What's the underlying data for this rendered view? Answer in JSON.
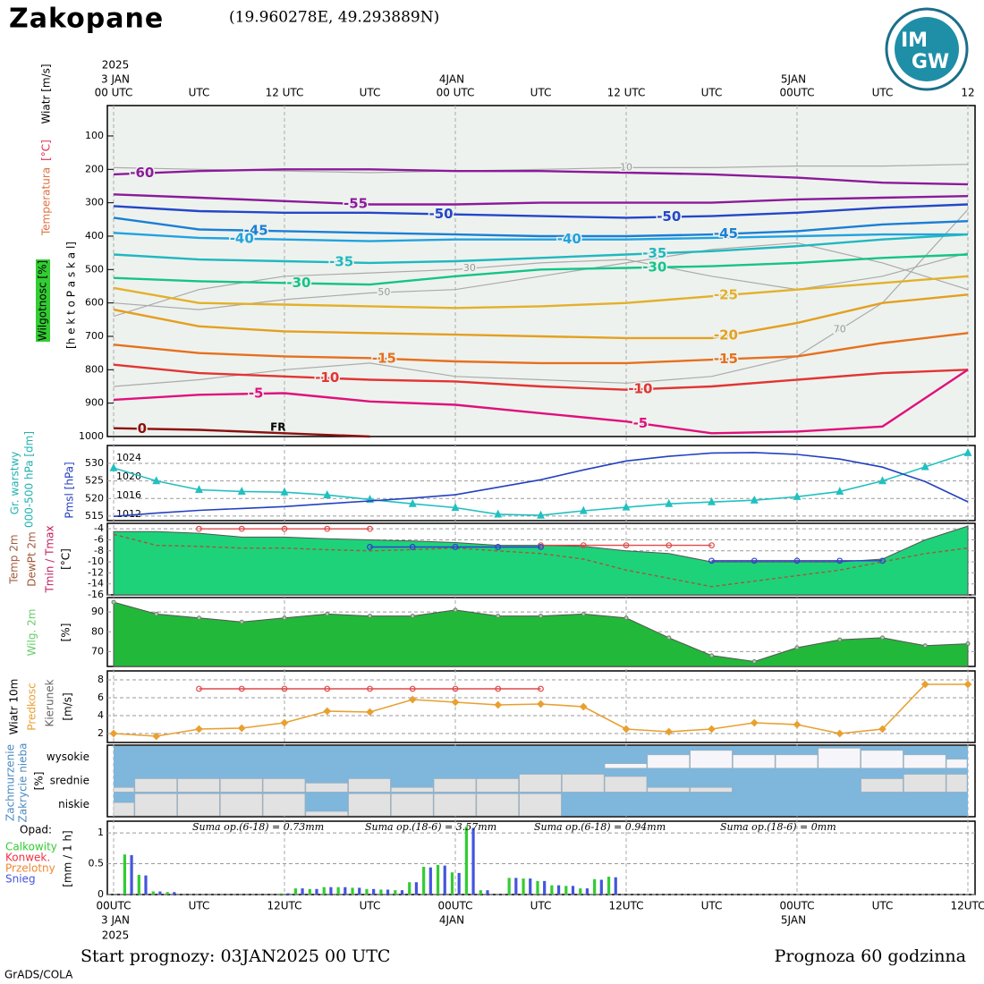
{
  "header": {
    "title": "Zakopane",
    "coords": "(19.960278E, 49.293889N)",
    "logo": {
      "top": "IM",
      "bottom": "GW"
    }
  },
  "time_axis": {
    "xlim": [
      0,
      60
    ],
    "top_ticks": [
      {
        "value": 0,
        "label": "00 UTC"
      },
      {
        "value": 6,
        "label": "UTC"
      },
      {
        "value": 12,
        "label": "12 UTC"
      },
      {
        "value": 18,
        "label": "UTC"
      },
      {
        "value": 24,
        "label": "00 UTC"
      },
      {
        "value": 30,
        "label": "UTC"
      },
      {
        "value": 36,
        "label": "12 UTC"
      },
      {
        "value": 42,
        "label": "UTC"
      },
      {
        "value": 48,
        "label": "00UTC"
      },
      {
        "value": 54,
        "label": "UTC"
      },
      {
        "value": 60,
        "label": "12"
      }
    ],
    "top_dates": [
      {
        "value": 0,
        "label": "2025"
      },
      {
        "value": 0,
        "label": "3 JAN"
      },
      {
        "value": 24,
        "label": "4JAN"
      },
      {
        "value": 48,
        "label": "5JAN"
      }
    ],
    "bottom_ticks": [
      {
        "value": 0,
        "label": "00UTC"
      },
      {
        "value": 6,
        "label": "UTC"
      },
      {
        "value": 12,
        "label": "12UTC"
      },
      {
        "value": 18,
        "label": "UTC"
      },
      {
        "value": 24,
        "label": "00UTC"
      },
      {
        "value": 30,
        "label": "UTC"
      },
      {
        "value": 36,
        "label": "12UTC"
      },
      {
        "value": 42,
        "label": "UTC"
      },
      {
        "value": 48,
        "label": "00UTC"
      },
      {
        "value": 54,
        "label": "UTC"
      },
      {
        "value": 60,
        "label": "12UTC"
      }
    ],
    "bottom_dates": [
      {
        "value": 0,
        "label": "3 JAN"
      },
      {
        "value": 0,
        "label": "2025"
      },
      {
        "value": 24,
        "label": "4JAN"
      },
      {
        "value": 48,
        "label": "5JAN"
      }
    ]
  },
  "chart_data": [
    {
      "type": "contour",
      "axis_labels": [
        "Wiatr [m/s]",
        "[°C]",
        "Temperatura",
        "Wilgotnosc [%]",
        "[h e k t o P a s k a l]"
      ],
      "ylim": [
        1000,
        9
      ],
      "yticks": [
        100,
        200,
        300,
        400,
        500,
        600,
        700,
        800,
        900,
        1000
      ],
      "x": [
        0,
        6,
        12,
        18,
        24,
        30,
        36,
        42,
        48,
        54,
        60
      ],
      "series": [
        {
          "name": "-60",
          "color": "#8b1a9b",
          "values": [
            215,
            205,
            200,
            200,
            205,
            205,
            210,
            215,
            225,
            240,
            245
          ]
        },
        {
          "name": "-55",
          "color": "#8b1a9b",
          "values": [
            275,
            285,
            295,
            305,
            305,
            300,
            300,
            300,
            290,
            285,
            280
          ]
        },
        {
          "name": "-50",
          "color": "#2446c8",
          "values": [
            310,
            325,
            330,
            330,
            335,
            340,
            345,
            340,
            330,
            315,
            305
          ]
        },
        {
          "name": "-45",
          "color": "#1a7fd6",
          "values": [
            345,
            380,
            385,
            390,
            395,
            400,
            400,
            395,
            385,
            365,
            355
          ]
        },
        {
          "name": "-40",
          "color": "#20a3e0",
          "values": [
            390,
            405,
            410,
            415,
            410,
            410,
            410,
            405,
            400,
            395,
            395
          ]
        },
        {
          "name": "-35",
          "color": "#20b8c0",
          "values": [
            455,
            470,
            475,
            480,
            475,
            465,
            455,
            445,
            430,
            410,
            395
          ]
        },
        {
          "name": "-30",
          "color": "#14c48a",
          "values": [
            525,
            535,
            540,
            545,
            520,
            500,
            495,
            490,
            480,
            465,
            455
          ]
        },
        {
          "name": "-25",
          "color": "#e3b02a",
          "values": [
            555,
            600,
            605,
            610,
            615,
            610,
            600,
            580,
            560,
            540,
            520
          ]
        },
        {
          "name": "-20",
          "color": "#e3a020",
          "values": [
            620,
            670,
            685,
            690,
            695,
            700,
            705,
            705,
            660,
            600,
            575
          ]
        },
        {
          "name": "-15",
          "color": "#e6701e",
          "values": [
            725,
            750,
            760,
            765,
            775,
            780,
            780,
            770,
            760,
            720,
            690
          ]
        },
        {
          "name": "-10",
          "color": "#e23434",
          "values": [
            785,
            810,
            820,
            830,
            835,
            850,
            860,
            850,
            830,
            810,
            800
          ]
        },
        {
          "name": "-5",
          "color": "#e0107c",
          "values": [
            890,
            875,
            870,
            895,
            905,
            930,
            955,
            990,
            985,
            970,
            800
          ]
        },
        {
          "name": "0",
          "color": "#8b1010",
          "values": [
            975,
            980,
            990,
            1000,
            null,
            null,
            null,
            null,
            null,
            null,
            null
          ]
        },
        {
          "name": "10",
          "color": "#aaaaaa",
          "values": [
            195,
            200,
            205,
            210,
            205,
            200,
            195,
            195,
            190,
            190,
            185
          ]
        },
        {
          "name": "30",
          "color": "#aaaaaa",
          "values": [
            640,
            560,
            520,
            510,
            500,
            480,
            470,
            520,
            560,
            520,
            450
          ]
        },
        {
          "name": "50",
          "color": "#aaaaaa",
          "values": [
            600,
            620,
            590,
            570,
            560,
            520,
            480,
            440,
            420,
            480,
            560
          ]
        },
        {
          "name": "70",
          "color": "#aaaaaa",
          "values": [
            850,
            830,
            800,
            780,
            820,
            830,
            840,
            820,
            760,
            600,
            320
          ]
        }
      ],
      "annotations": [
        "FR"
      ]
    },
    {
      "type": "line",
      "axis_labels": [
        "Gr. warstwy",
        "000-500 hPa [dm]",
        "Pmsl [hPa]"
      ],
      "ylim": [
        513.7,
        535.1
      ],
      "yticks": [
        515,
        520,
        525,
        530
      ],
      "y2lim": [
        1010.7,
        1026.7
      ],
      "y2ticks": [
        1012,
        1016,
        1020,
        1024
      ],
      "x": [
        0,
        3,
        6,
        9,
        12,
        15,
        18,
        21,
        24,
        27,
        30,
        33,
        36,
        39,
        42,
        45,
        48,
        51,
        54,
        57,
        60
      ],
      "series": [
        {
          "color": "#22c0c0",
          "marker": "triangle",
          "values": [
            528.7,
            525,
            522.5,
            522,
            521.8,
            521,
            519.7,
            518.5,
            517.4,
            515.5,
            515.2,
            516.5,
            517.5,
            518.5,
            519,
            519.5,
            520.5,
            522,
            525,
            529,
            533
          ]
        },
        {
          "color": "#2440c0",
          "axis": "y2",
          "values": [
            1011.6,
            1012.3,
            1012.9,
            1013.3,
            1013.7,
            1014.3,
            1014.9,
            1015.5,
            1016.2,
            1017.8,
            1019.4,
            1021.5,
            1023.4,
            1024.4,
            1025.1,
            1025.2,
            1024.8,
            1023.8,
            1022.1,
            1019,
            1014.7
          ]
        }
      ]
    },
    {
      "type": "area",
      "axis_labels": [
        "Temp 2m",
        "DewPt 2m",
        "Tmin / Tmax",
        "[°C]"
      ],
      "ylim": [
        -16,
        -3
      ],
      "yticks": [
        -4,
        -6,
        -8,
        -10,
        -12,
        -14,
        -16
      ],
      "x": [
        0,
        3,
        6,
        9,
        12,
        15,
        18,
        21,
        24,
        27,
        30,
        33,
        36,
        39,
        42,
        45,
        48,
        51,
        54,
        57,
        60
      ],
      "series": [
        {
          "color": "#1ed27a",
          "values": [
            -4.5,
            -4.5,
            -4.8,
            -5.5,
            -5.5,
            -5.8,
            -6,
            -6.2,
            -6.5,
            -7,
            -7,
            -7.2,
            -8,
            -8.5,
            -10,
            -10,
            -10,
            -10,
            -9.5,
            -6,
            -3.5
          ]
        },
        {
          "color": "#a05a3c",
          "dash": true,
          "values": [
            -5,
            -7,
            -7.2,
            -7.5,
            -7.5,
            -7.8,
            -8,
            -7.8,
            -7.5,
            -8,
            -8.5,
            -9.5,
            -11.5,
            -13,
            -14.5,
            -13.5,
            -12.5,
            -11.5,
            -10,
            -8.5,
            -7.5
          ]
        },
        {
          "color": "#e04848",
          "marker": "circle",
          "values": [
            null,
            null,
            -4,
            -4,
            -4,
            -4,
            -4,
            null,
            null,
            null,
            -7,
            -7,
            -7,
            -7,
            -7,
            null,
            null,
            null,
            null,
            null,
            null
          ]
        },
        {
          "color": "#3040d0",
          "marker": "circle",
          "values": [
            null,
            null,
            null,
            null,
            null,
            null,
            -7.3,
            -7.3,
            -7.3,
            -7.3,
            -7.3,
            null,
            null,
            null,
            -9.8,
            -9.8,
            -9.8,
            -9.8,
            -9.8,
            null,
            null
          ]
        }
      ]
    },
    {
      "type": "area",
      "axis_labels": [
        "Wilg. 2m",
        "[%]"
      ],
      "ylim": [
        62.5,
        97.3
      ],
      "yticks": [
        70,
        80,
        90
      ],
      "x": [
        0,
        3,
        6,
        9,
        12,
        15,
        18,
        21,
        24,
        27,
        30,
        33,
        36,
        39,
        42,
        45,
        48,
        51,
        54,
        57,
        60
      ],
      "series": [
        {
          "color": "#22b83a",
          "values": [
            95,
            89,
            87,
            85,
            87,
            89,
            88,
            88,
            91,
            88,
            88,
            89,
            87,
            77,
            68,
            65,
            72,
            76,
            77,
            73,
            74
          ]
        }
      ]
    },
    {
      "type": "line",
      "axis_labels": [
        "Wiatr 10m",
        "Predkosc",
        "Kierunek",
        "[m/s]"
      ],
      "ylim": [
        1,
        9
      ],
      "yticks": [
        2,
        4,
        6,
        8
      ],
      "x": [
        0,
        3,
        6,
        9,
        12,
        15,
        18,
        21,
        24,
        27,
        30,
        33,
        36,
        39,
        42,
        45,
        48,
        51,
        54,
        57,
        60
      ],
      "series": [
        {
          "color": "#e8a030",
          "marker": "diamond",
          "values": [
            2,
            1.7,
            2.5,
            2.6,
            3.2,
            4.5,
            4.4,
            5.8,
            5.5,
            5.2,
            5.3,
            5,
            2.5,
            2.2,
            2.5,
            3.2,
            3,
            2,
            2.5,
            7.5,
            7.5
          ]
        },
        {
          "color": "#e04848",
          "marker": "circle",
          "values": [
            null,
            null,
            7,
            7,
            7,
            7,
            7,
            7,
            7,
            7,
            7,
            null,
            null,
            null,
            null,
            null,
            null,
            null,
            null,
            null,
            null
          ]
        }
      ]
    },
    {
      "type": "cloud",
      "axis_labels": [
        "Zachmurzenie",
        "Zakrycie nieba",
        "[%]"
      ],
      "ylim": [
        0,
        100
      ],
      "categories": [
        "wysokie",
        "srednie",
        "niskie"
      ],
      "x": [
        0,
        3,
        6,
        9,
        12,
        15,
        18,
        21,
        24,
        27,
        30,
        33,
        36,
        39,
        42,
        45,
        48,
        51,
        54,
        57,
        60
      ],
      "series": [
        {
          "color": "#f6f6fa",
          "values": [
            0,
            0,
            0,
            0,
            0,
            0,
            0,
            0,
            0,
            0,
            0,
            0,
            20,
            60,
            80,
            60,
            60,
            90,
            80,
            60,
            40
          ]
        },
        {
          "color": "#e2e2e2",
          "values": [
            20,
            60,
            60,
            60,
            60,
            40,
            60,
            20,
            60,
            60,
            80,
            80,
            70,
            20,
            20,
            0,
            0,
            0,
            60,
            80,
            80
          ]
        },
        {
          "color": "#e2e2e2",
          "values": [
            60,
            100,
            100,
            100,
            100,
            20,
            100,
            100,
            100,
            100,
            100,
            0,
            0,
            0,
            0,
            0,
            0,
            0,
            0,
            0,
            0
          ]
        }
      ]
    },
    {
      "type": "bar",
      "title": "Opad:",
      "axis_labels": [
        "[mm / 1 h]"
      ],
      "ylim": [
        0,
        1.19
      ],
      "yticks": [
        0,
        0.5,
        1
      ],
      "x": [
        1,
        2,
        3,
        4,
        12,
        13,
        14,
        15,
        16,
        17,
        18,
        19,
        20,
        21,
        22,
        23,
        24,
        25,
        26,
        28,
        29,
        30,
        31,
        32,
        33,
        34,
        35
      ],
      "series": [
        {
          "name": "Calkowity",
          "color": "#33cc33",
          "values": [
            0.65,
            0.32,
            0.05,
            0.04,
            0.02,
            0.1,
            0.09,
            0.12,
            0.12,
            0.11,
            0.09,
            0.08,
            0.07,
            0.2,
            0.45,
            0.48,
            0.36,
            1.1,
            0.07,
            0.27,
            0.26,
            0.22,
            0.15,
            0.14,
            0.1,
            0.25,
            0.29
          ]
        },
        {
          "name": "Konwek.",
          "color": "#ee3344",
          "values": [
            0,
            0,
            0,
            0,
            0,
            0,
            0,
            0,
            0,
            0,
            0,
            0,
            0,
            0,
            0,
            0,
            0,
            0,
            0,
            0,
            0,
            0,
            0,
            0,
            0,
            0,
            0
          ]
        },
        {
          "name": "Przelotny",
          "color": "#ee8833",
          "values": [
            0,
            0,
            0,
            0,
            0,
            0,
            0,
            0,
            0,
            0,
            0,
            0,
            0,
            0,
            0,
            0,
            0,
            0,
            0,
            0,
            0,
            0,
            0,
            0,
            0,
            0,
            0
          ]
        },
        {
          "name": "Snieg",
          "color": "#4455dd",
          "values": [
            0.64,
            0.31,
            0.05,
            0.04,
            0.02,
            0.1,
            0.09,
            0.12,
            0.12,
            0.11,
            0.09,
            0.08,
            0.07,
            0.2,
            0.44,
            0.47,
            0.35,
            1.08,
            0.07,
            0.27,
            0.26,
            0.22,
            0.15,
            0.14,
            0.1,
            0.24,
            0.28
          ]
        }
      ],
      "annotations": [
        "Suma op.(6-18) = 0.73mm",
        "Suma op.(18-6) = 3.57mm",
        "Suma op.(6-18) = 0.94mm",
        "Suma op.(18-6) = 0mm"
      ]
    }
  ],
  "footer": {
    "start": "Start prognozy: 03JAN2025 00 UTC",
    "range": "Prognoza 60 godzinna",
    "credit": "GrADS/COLA"
  }
}
